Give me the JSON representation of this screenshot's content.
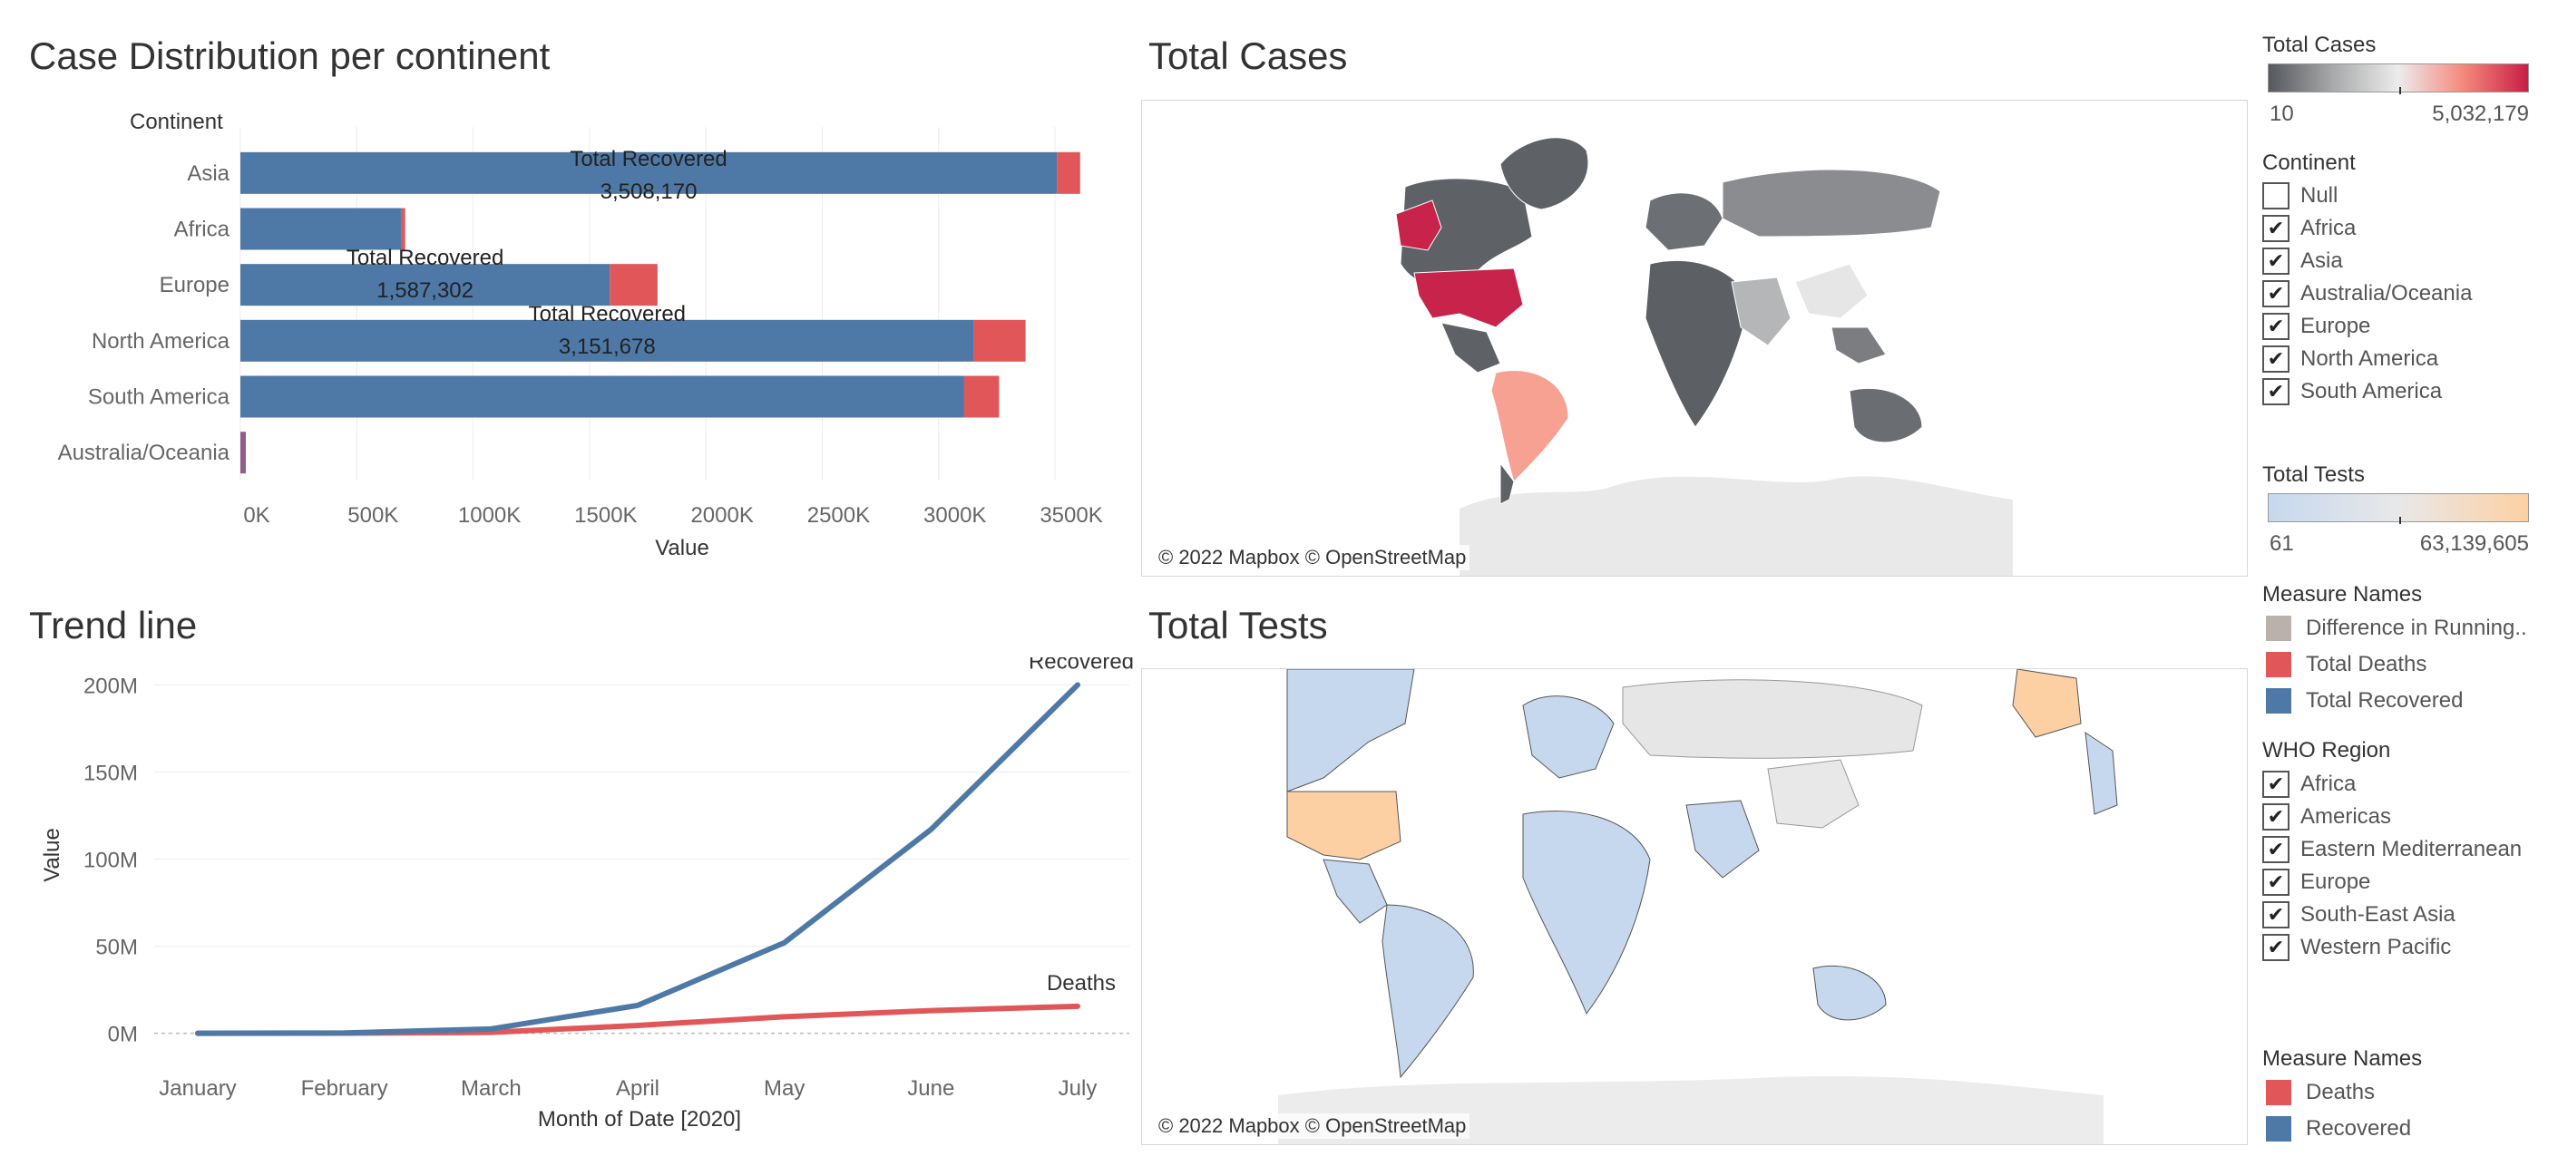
{
  "colors": {
    "recovered": "#4e79a7",
    "deaths": "#e15759",
    "difference": "#bab0ac",
    "cases_ramp": [
      "#55585d",
      "#a9aaab",
      "#ececec",
      "#f4897c",
      "#c81e45"
    ],
    "tests_ramp": [
      "#c6d8ee",
      "#e8e8e8",
      "#fdd0a4"
    ]
  },
  "panels": {
    "bar_title": "Case Distribution per continent",
    "cases_title": "Total Cases",
    "trend_title": "Trend line",
    "tests_title": "Total Tests",
    "map_attribution": "© 2022 Mapbox © OpenStreetMap"
  },
  "chart_data": [
    {
      "type": "bar",
      "title": "Case Distribution per continent",
      "ylabel": "Continent",
      "xlabel": "Value",
      "categories": [
        "Asia",
        "Africa",
        "Europe",
        "North America",
        "South America",
        "Australia/Oceania"
      ],
      "series": [
        {
          "name": "Total Recovered",
          "values": [
            3508170,
            693000,
            1587302,
            3151678,
            3110000,
            9000
          ]
        },
        {
          "name": "Total Deaths",
          "values": [
            100000,
            15000,
            205000,
            222000,
            150000,
            15000
          ]
        }
      ],
      "xlim": [
        0,
        3800000
      ],
      "xticks": [
        0,
        500000,
        1000000,
        1500000,
        2000000,
        2500000,
        3000000,
        3500000
      ],
      "xtick_labels": [
        "0K",
        "500K",
        "1000K",
        "1500K",
        "2000K",
        "2500K",
        "3000K",
        "3500K"
      ],
      "annotations": [
        {
          "category": "Asia",
          "label": "Total Recovered",
          "value": "3,508,170"
        },
        {
          "category": "Europe",
          "label": "Total Recovered",
          "value": "1,587,302"
        },
        {
          "category": "North America",
          "label": "Total Recovered",
          "value": "3,151,678"
        }
      ],
      "grid": true
    },
    {
      "type": "line",
      "title": "Trend line",
      "xlabel": "Month of Date [2020]",
      "ylabel": "Value",
      "x": [
        "January",
        "February",
        "March",
        "April",
        "May",
        "June",
        "July"
      ],
      "series": [
        {
          "name": "Recovered",
          "values": [
            0,
            200000,
            2500000,
            16000000,
            52000000,
            117000000,
            200000000
          ]
        },
        {
          "name": "Deaths",
          "values": [
            0,
            50000,
            500000,
            4500000,
            9500000,
            13000000,
            15500000
          ]
        }
      ],
      "ylim": [
        -8000000,
        208000000
      ],
      "yticks": [
        0,
        50000000,
        100000000,
        150000000,
        200000000
      ],
      "ytick_labels": [
        "0M",
        "50M",
        "100M",
        "150M",
        "200M"
      ],
      "grid": true
    }
  ],
  "legends": {
    "total_cases": {
      "title": "Total Cases",
      "min": "10",
      "max": "5,032,179"
    },
    "continent": {
      "title": "Continent",
      "items": [
        {
          "label": "Null",
          "checked": false
        },
        {
          "label": "Africa",
          "checked": true
        },
        {
          "label": "Asia",
          "checked": true
        },
        {
          "label": "Australia/Oceania",
          "checked": true
        },
        {
          "label": "Europe",
          "checked": true
        },
        {
          "label": "North America",
          "checked": true
        },
        {
          "label": "South America",
          "checked": true
        }
      ]
    },
    "total_tests": {
      "title": "Total Tests",
      "min": "61",
      "max": "63,139,605"
    },
    "measure_names_1": {
      "title": "Measure Names",
      "items": [
        {
          "label": "Difference in Running..",
          "color": "#bab0ac"
        },
        {
          "label": "Total Deaths",
          "color": "#e15759"
        },
        {
          "label": "Total Recovered",
          "color": "#4e79a7"
        }
      ]
    },
    "who_region": {
      "title": "WHO Region",
      "items": [
        {
          "label": "Africa",
          "checked": true
        },
        {
          "label": "Americas",
          "checked": true
        },
        {
          "label": "Eastern Mediterranean",
          "checked": true
        },
        {
          "label": "Europe",
          "checked": true
        },
        {
          "label": "South-East Asia",
          "checked": true
        },
        {
          "label": "Western Pacific",
          "checked": true
        }
      ]
    },
    "measure_names_2": {
      "title": "Measure Names",
      "items": [
        {
          "label": "Deaths",
          "color": "#e15759"
        },
        {
          "label": "Recovered",
          "color": "#4e79a7"
        }
      ]
    }
  }
}
